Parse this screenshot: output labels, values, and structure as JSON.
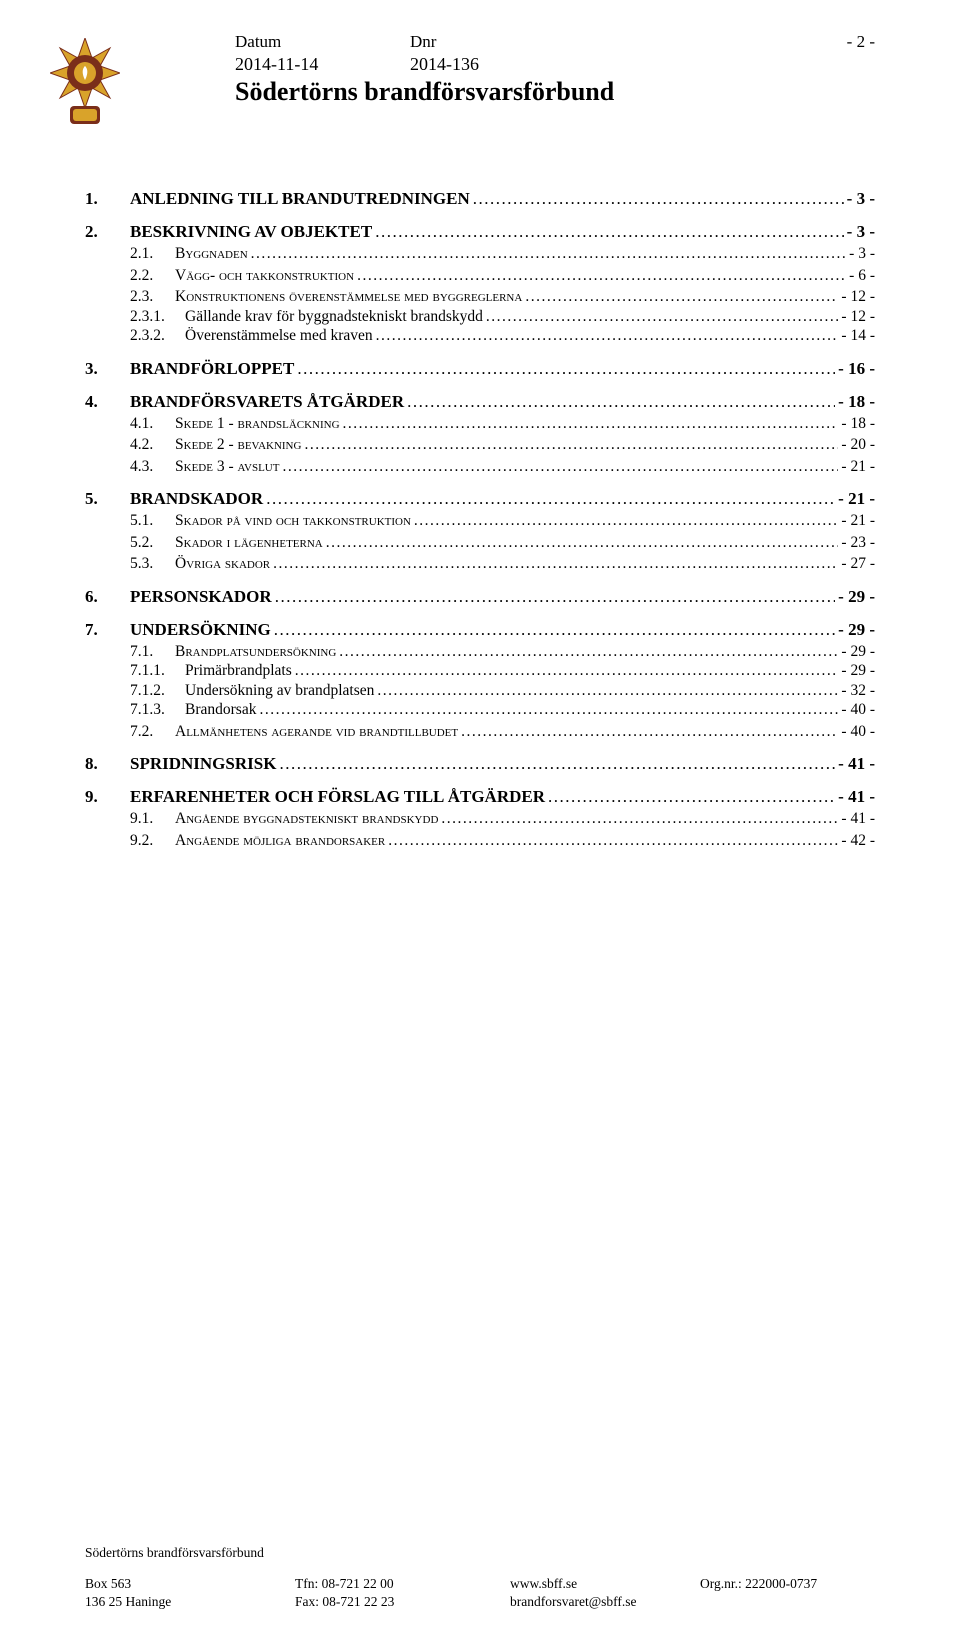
{
  "header": {
    "datum_label": "Datum",
    "dnr_label": "Dnr",
    "datum_value": "2014-11-14",
    "dnr_value": "2014-136",
    "org_title": "Södertörns brandförsvarsförbund",
    "page_number": "- 2 -"
  },
  "logo": {
    "star_color": "#d9a32a",
    "ring_color": "#7a2e1a",
    "text_color": "#d9a32a",
    "flame_color": "#ffffff"
  },
  "toc": [
    {
      "level": 0,
      "num": "1.",
      "title": "ANLEDNING TILL BRANDUTREDNINGEN",
      "page": "- 3 -"
    },
    {
      "level": 0,
      "num": "2.",
      "title": "BESKRIVNING AV OBJEKTET",
      "page": "- 3 -"
    },
    {
      "level": 1,
      "num": "2.1.",
      "title": "Byggnaden",
      "smallcaps": true,
      "page": "- 3 -"
    },
    {
      "level": 1,
      "num": "2.2.",
      "title": "Vägg- och takkonstruktion",
      "smallcaps": true,
      "page": "- 6 -"
    },
    {
      "level": 1,
      "num": "2.3.",
      "title": "Konstruktionens överenstämmelse med byggreglerna",
      "smallcaps": true,
      "page": "- 12 -"
    },
    {
      "level": 2,
      "num": "2.3.1.",
      "title": "Gällande krav för byggnadstekniskt brandskydd",
      "page": "- 12 -"
    },
    {
      "level": 2,
      "num": "2.3.2.",
      "title": "Överenstämmelse med kraven",
      "page": "- 14 -"
    },
    {
      "level": 0,
      "num": "3.",
      "title": "BRANDFÖRLOPPET",
      "page": "- 16 -"
    },
    {
      "level": 0,
      "num": "4.",
      "title": "BRANDFÖRSVARETS ÅTGÄRDER",
      "page": "- 18 -"
    },
    {
      "level": 1,
      "num": "4.1.",
      "title": "Skede 1 - brandsläckning",
      "smallcaps": true,
      "page": "- 18 -"
    },
    {
      "level": 1,
      "num": "4.2.",
      "title": "Skede 2 - bevakning",
      "smallcaps": true,
      "page": "- 20 -"
    },
    {
      "level": 1,
      "num": "4.3.",
      "title": "Skede 3 - avslut",
      "smallcaps": true,
      "page": "- 21 -"
    },
    {
      "level": 0,
      "num": "5.",
      "title": "BRANDSKADOR",
      "page": "- 21 -"
    },
    {
      "level": 1,
      "num": "5.1.",
      "title": "Skador på vind och takkonstruktion",
      "smallcaps": true,
      "page": "- 21 -"
    },
    {
      "level": 1,
      "num": "5.2.",
      "title": "Skador i lägenheterna",
      "smallcaps": true,
      "page": "- 23 -"
    },
    {
      "level": 1,
      "num": "5.3.",
      "title": "Övriga skador",
      "smallcaps": true,
      "page": "- 27 -"
    },
    {
      "level": 0,
      "num": "6.",
      "title": "PERSONSKADOR",
      "page": "- 29 -"
    },
    {
      "level": 0,
      "num": "7.",
      "title": "UNDERSÖKNING",
      "page": "- 29 -"
    },
    {
      "level": 1,
      "num": "7.1.",
      "title": "Brandplatsundersökning",
      "smallcaps": true,
      "page": "- 29 -"
    },
    {
      "level": 2,
      "num": "7.1.1.",
      "title": "Primärbrandplats",
      "page": "- 29 -"
    },
    {
      "level": 2,
      "num": "7.1.2.",
      "title": "Undersökning av brandplatsen",
      "page": "- 32 -"
    },
    {
      "level": 2,
      "num": "7.1.3.",
      "title": "Brandorsak",
      "page": "- 40 -"
    },
    {
      "level": 1,
      "num": "7.2.",
      "title": "Allmänhetens agerande vid brandtillbudet",
      "smallcaps": true,
      "page": "- 40 -"
    },
    {
      "level": 0,
      "num": "8.",
      "title": "SPRIDNINGSRISK",
      "page": "- 41 -"
    },
    {
      "level": 0,
      "num": "9.",
      "title": "ERFARENHETER OCH FÖRSLAG TILL ÅTGÄRDER",
      "page": "- 41 -"
    },
    {
      "level": 1,
      "num": "9.1.",
      "title": "Angående byggnadstekniskt brandskydd",
      "smallcaps": true,
      "page": "- 41 -"
    },
    {
      "level": 1,
      "num": "9.2.",
      "title": "Angående möjliga brandorsaker",
      "smallcaps": true,
      "page": "- 42 -"
    }
  ],
  "footer": {
    "title": "Södertörns brandförsvarsförbund",
    "col1_line1": "Box 563",
    "col1_line2": "136 25 Haninge",
    "col2_line1": "Tfn: 08-721 22 00",
    "col2_line2": "Fax: 08-721 22 23",
    "col3_line1": "www.sbff.se",
    "col3_line2": "brandforsvaret@sbff.se",
    "col4_line1": "Org.nr.: 222000-0737"
  }
}
